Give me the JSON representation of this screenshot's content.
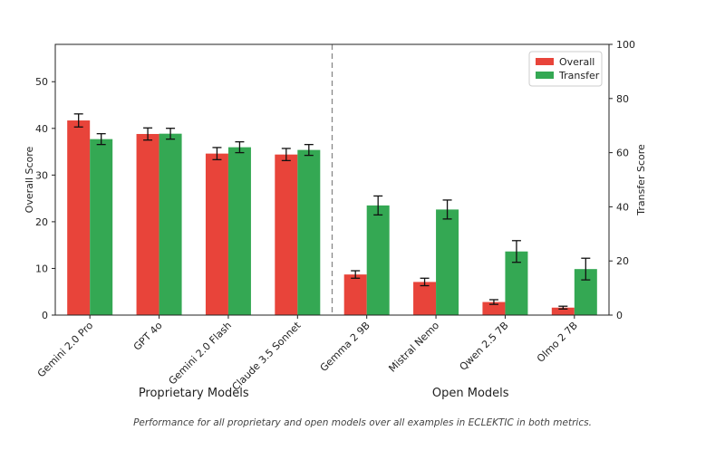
{
  "chart_data": {
    "type": "bar",
    "categories": [
      "Gemini 2.0 Pro",
      "GPT 4o",
      "Gemini 2.0 Flash",
      "Claude 3.5 Sonnet",
      "Gemma 2 9B",
      "Mistral Nemo",
      "Qwen 2.5 7B",
      "Olmo 2 7B"
    ],
    "groups": [
      {
        "label": "Proprietary Models",
        "start": 0,
        "end": 3
      },
      {
        "label": "Open Models",
        "start": 4,
        "end": 7
      }
    ],
    "series": [
      {
        "name": "Overall",
        "axis": "left",
        "color": "#e8443a",
        "values": [
          41.7,
          38.8,
          34.6,
          34.4,
          8.7,
          7.1,
          2.8,
          1.6
        ],
        "errors": [
          1.4,
          1.3,
          1.3,
          1.3,
          0.8,
          0.8,
          0.5,
          0.3
        ]
      },
      {
        "name": "Transfer",
        "axis": "right",
        "color": "#34a853",
        "values": [
          65.0,
          67.0,
          62.0,
          61.0,
          40.5,
          39.0,
          23.5,
          17.0
        ],
        "errors": [
          2.0,
          2.0,
          2.0,
          2.0,
          3.5,
          3.5,
          4.0,
          4.0
        ]
      }
    ],
    "ylabel": "Overall Score",
    "ylim": [
      0,
      58
    ],
    "yticks": [
      0,
      10,
      20,
      30,
      40,
      50
    ],
    "y2label": "Transfer Score",
    "y2lim": [
      0,
      100
    ],
    "y2ticks": [
      0,
      20,
      40,
      60,
      80,
      100
    ],
    "legend": "top-right",
    "grid": false
  },
  "caption": "Performance for all proprietary and open models over all examples in ECLEKTIC in both metrics."
}
